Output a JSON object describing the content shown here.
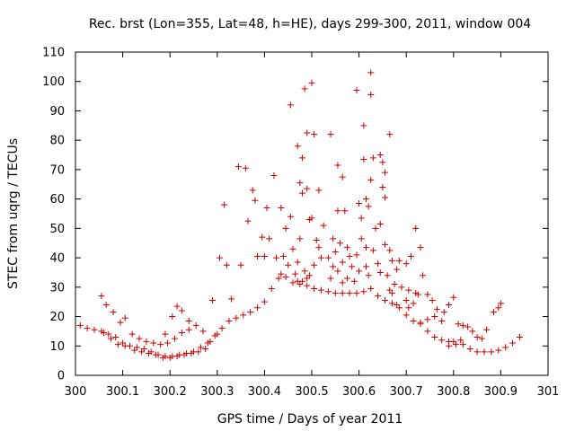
{
  "chart_data": {
    "type": "scatter",
    "title": "Rec. brst (Lon=355, Lat=48, h=HE), days 299-300, 2011, window 004",
    "xlabel": "GPS time / Days of year 2011",
    "ylabel": "STEC from uqrg / TECUs",
    "xlim": [
      300,
      301
    ],
    "ylim": [
      0,
      110
    ],
    "xticks": [
      "300",
      "300.1",
      "300.2",
      "300.3",
      "300.4",
      "300.5",
      "300.6",
      "300.7",
      "300.8",
      "300.9",
      "301"
    ],
    "yticks": [
      "0",
      "10",
      "20",
      "30",
      "40",
      "50",
      "60",
      "70",
      "80",
      "90",
      "100",
      "110"
    ],
    "grid": false,
    "legend": "none",
    "marker": "+",
    "colors": {
      "series": "#cc0000",
      "axes": "#000000"
    },
    "points": [
      [
        300.01,
        17.0
      ],
      [
        300.025,
        16.0
      ],
      [
        300.04,
        15.5
      ],
      [
        300.055,
        15.0
      ],
      [
        300.07,
        14.0
      ],
      [
        300.085,
        13.0
      ],
      [
        300.1,
        11.0
      ],
      [
        300.115,
        10.0
      ],
      [
        300.13,
        9.5
      ],
      [
        300.145,
        9.0
      ],
      [
        300.16,
        8.0
      ],
      [
        300.175,
        7.0
      ],
      [
        300.19,
        6.5
      ],
      [
        300.205,
        6.5
      ],
      [
        300.22,
        7.0
      ],
      [
        300.235,
        7.5
      ],
      [
        300.25,
        8.0
      ],
      [
        300.265,
        9.5
      ],
      [
        300.28,
        11.0
      ],
      [
        300.295,
        13.5
      ],
      [
        300.31,
        16.0
      ],
      [
        300.325,
        18.5
      ],
      [
        300.34,
        19.5
      ],
      [
        300.355,
        20.5
      ],
      [
        300.37,
        21.5
      ],
      [
        300.385,
        23.0
      ],
      [
        300.4,
        25.0
      ],
      [
        300.415,
        29.5
      ],
      [
        300.43,
        33.0
      ],
      [
        300.445,
        33.5
      ],
      [
        300.46,
        31.5
      ],
      [
        300.475,
        31.0
      ],
      [
        300.49,
        30.5
      ],
      [
        300.505,
        29.5
      ],
      [
        300.52,
        29.0
      ],
      [
        300.535,
        28.5
      ],
      [
        300.55,
        28.0
      ],
      [
        300.565,
        28.0
      ],
      [
        300.58,
        28.0
      ],
      [
        300.595,
        28.0
      ],
      [
        300.61,
        28.5
      ],
      [
        300.625,
        29.5
      ],
      [
        300.64,
        27.0
      ],
      [
        300.655,
        25.5
      ],
      [
        300.67,
        24.5
      ],
      [
        300.685,
        23.0
      ],
      [
        300.7,
        20.5
      ],
      [
        300.715,
        18.5
      ],
      [
        300.73,
        17.5
      ],
      [
        300.745,
        15.0
      ],
      [
        300.76,
        13.0
      ],
      [
        300.775,
        12.0
      ],
      [
        300.79,
        11.5
      ],
      [
        300.805,
        10.5
      ],
      [
        300.82,
        10.5
      ],
      [
        300.835,
        9.0
      ],
      [
        300.85,
        8.0
      ],
      [
        300.865,
        8.0
      ],
      [
        300.88,
        8.0
      ],
      [
        300.895,
        8.5
      ],
      [
        300.91,
        9.5
      ],
      [
        300.925,
        11.0
      ],
      [
        300.94,
        13.0
      ],
      [
        300.055,
        27.0
      ],
      [
        300.065,
        24.0
      ],
      [
        300.08,
        21.5
      ],
      [
        300.095,
        18.0
      ],
      [
        300.105,
        19.5
      ],
      [
        300.12,
        14.0
      ],
      [
        300.135,
        12.5
      ],
      [
        300.15,
        11.5
      ],
      [
        300.165,
        11.0
      ],
      [
        300.18,
        10.5
      ],
      [
        300.195,
        11.0
      ],
      [
        300.21,
        12.5
      ],
      [
        300.225,
        14.5
      ],
      [
        300.24,
        15.5
      ],
      [
        300.255,
        17.0
      ],
      [
        300.29,
        25.5
      ],
      [
        300.305,
        40.0
      ],
      [
        300.32,
        37.5
      ],
      [
        300.06,
        14.5
      ],
      [
        300.075,
        12.5
      ],
      [
        300.09,
        10.5
      ],
      [
        300.105,
        10.0
      ],
      [
        300.125,
        8.5
      ],
      [
        300.14,
        8.0
      ],
      [
        300.155,
        7.5
      ],
      [
        300.17,
        7.0
      ],
      [
        300.185,
        6.0
      ],
      [
        300.2,
        6.0
      ],
      [
        300.215,
        6.5
      ],
      [
        300.23,
        7.0
      ],
      [
        300.245,
        7.5
      ],
      [
        300.26,
        8.0
      ],
      [
        300.275,
        9.0
      ],
      [
        300.19,
        14.0
      ],
      [
        300.205,
        20.0
      ],
      [
        300.215,
        23.5
      ],
      [
        300.225,
        22.0
      ],
      [
        300.24,
        18.5
      ],
      [
        300.27,
        15.0
      ],
      [
        300.285,
        11.5
      ],
      [
        300.3,
        14.0
      ],
      [
        300.33,
        26.0
      ],
      [
        300.315,
        58.0
      ],
      [
        300.345,
        71.0
      ],
      [
        300.36,
        70.5
      ],
      [
        300.375,
        63.0
      ],
      [
        300.38,
        59.5
      ],
      [
        300.365,
        52.5
      ],
      [
        300.35,
        37.5
      ],
      [
        300.385,
        40.5
      ],
      [
        300.395,
        47.0
      ],
      [
        300.405,
        57.0
      ],
      [
        300.42,
        68.0
      ],
      [
        300.435,
        57.0
      ],
      [
        300.4,
        40.5
      ],
      [
        300.41,
        46.5
      ],
      [
        300.425,
        40.0
      ],
      [
        300.44,
        40.5
      ],
      [
        300.435,
        34.5
      ],
      [
        300.445,
        50.0
      ],
      [
        300.455,
        54.0
      ],
      [
        300.46,
        43.0
      ],
      [
        300.45,
        37.5
      ],
      [
        300.465,
        34.5
      ],
      [
        300.455,
        92.0
      ],
      [
        300.47,
        78.0
      ],
      [
        300.48,
        74.0
      ],
      [
        300.475,
        65.5
      ],
      [
        300.485,
        97.5
      ],
      [
        300.49,
        82.5
      ],
      [
        300.5,
        99.5
      ],
      [
        300.505,
        82.0
      ],
      [
        300.48,
        62.0
      ],
      [
        300.49,
        63.5
      ],
      [
        300.515,
        63.0
      ],
      [
        300.495,
        53.0
      ],
      [
        300.5,
        53.5
      ],
      [
        300.475,
        46.5
      ],
      [
        300.47,
        38.5
      ],
      [
        300.485,
        35.5
      ],
      [
        300.495,
        34.0
      ],
      [
        300.51,
        46.0
      ],
      [
        300.515,
        43.5
      ],
      [
        300.525,
        51.0
      ],
      [
        300.52,
        40.0
      ],
      [
        300.505,
        37.5
      ],
      [
        300.49,
        33.0
      ],
      [
        300.48,
        32.0
      ],
      [
        300.47,
        32.0
      ],
      [
        300.54,
        82.0
      ],
      [
        300.555,
        71.5
      ],
      [
        300.565,
        67.5
      ],
      [
        300.545,
        46.5
      ],
      [
        300.555,
        56.0
      ],
      [
        300.57,
        56.0
      ],
      [
        300.56,
        45.0
      ],
      [
        300.575,
        43.5
      ],
      [
        300.55,
        42.0
      ],
      [
        300.535,
        40.0
      ],
      [
        300.545,
        37.0
      ],
      [
        300.565,
        38.5
      ],
      [
        300.575,
        33.0
      ],
      [
        300.585,
        37.0
      ],
      [
        300.555,
        35.5
      ],
      [
        300.54,
        33.0
      ],
      [
        300.565,
        31.5
      ],
      [
        300.59,
        32.0
      ],
      [
        300.58,
        40.5
      ],
      [
        300.595,
        97.0
      ],
      [
        300.61,
        85.0
      ],
      [
        300.625,
        103.0
      ],
      [
        300.625,
        95.5
      ],
      [
        300.6,
        58.5
      ],
      [
        300.605,
        53.5
      ],
      [
        300.615,
        60.0
      ],
      [
        300.61,
        73.5
      ],
      [
        300.625,
        66.5
      ],
      [
        300.62,
        57.5
      ],
      [
        300.63,
        74.0
      ],
      [
        300.645,
        75.0
      ],
      [
        300.65,
        72.5
      ],
      [
        300.655,
        69.0
      ],
      [
        300.665,
        82.0
      ],
      [
        300.65,
        64.0
      ],
      [
        300.655,
        60.5
      ],
      [
        300.645,
        51.5
      ],
      [
        300.635,
        50.0
      ],
      [
        300.63,
        42.5
      ],
      [
        300.615,
        43.5
      ],
      [
        300.605,
        46.5
      ],
      [
        300.595,
        41.0
      ],
      [
        300.6,
        35.5
      ],
      [
        300.615,
        37.0
      ],
      [
        300.62,
        34.0
      ],
      [
        300.64,
        38.0
      ],
      [
        300.645,
        35.0
      ],
      [
        300.655,
        44.5
      ],
      [
        300.665,
        42.5
      ],
      [
        300.67,
        39.0
      ],
      [
        300.68,
        36.0
      ],
      [
        300.675,
        31.0
      ],
      [
        300.66,
        34.0
      ],
      [
        300.69,
        30.0
      ],
      [
        300.705,
        29.0
      ],
      [
        300.72,
        28.0
      ],
      [
        300.73,
        43.5
      ],
      [
        300.72,
        50.0
      ],
      [
        300.71,
        40.5
      ],
      [
        300.7,
        38.0
      ],
      [
        300.735,
        34.0
      ],
      [
        300.745,
        27.5
      ],
      [
        300.755,
        25.5
      ],
      [
        300.765,
        22.5
      ],
      [
        300.78,
        21.5
      ],
      [
        300.79,
        24.0
      ],
      [
        300.8,
        26.5
      ],
      [
        300.81,
        17.5
      ],
      [
        300.82,
        17.0
      ],
      [
        300.83,
        16.5
      ],
      [
        300.84,
        15.0
      ],
      [
        300.85,
        13.0
      ],
      [
        300.86,
        12.5
      ],
      [
        300.87,
        15.5
      ],
      [
        300.885,
        21.5
      ],
      [
        300.895,
        23.0
      ],
      [
        300.9,
        24.5
      ],
      [
        300.815,
        12.0
      ],
      [
        300.8,
        11.5
      ],
      [
        300.775,
        18.5
      ],
      [
        300.76,
        20.0
      ],
      [
        300.745,
        19.0
      ],
      [
        300.73,
        18.0
      ],
      [
        300.715,
        24.5
      ],
      [
        300.7,
        25.5
      ],
      [
        300.79,
        10.0
      ],
      [
        300.67,
        28.0
      ],
      [
        300.68,
        24.0
      ],
      [
        300.665,
        29.0
      ],
      [
        300.685,
        39.0
      ],
      [
        300.705,
        23.0
      ],
      [
        300.725,
        27.5
      ]
    ]
  }
}
